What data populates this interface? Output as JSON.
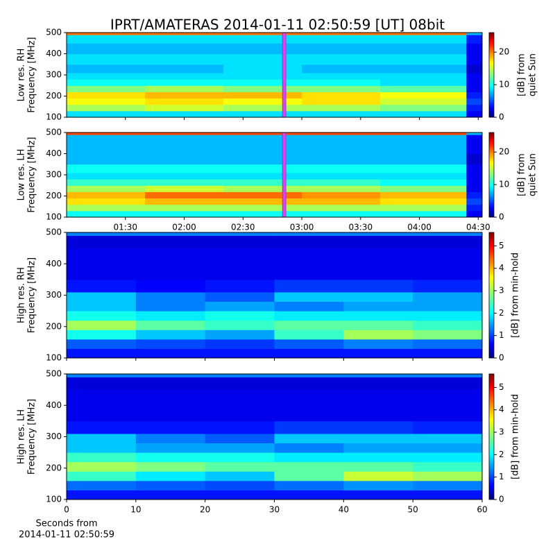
{
  "chart_data": [
    {
      "type": "heatmap",
      "title": "IPRT/AMATERAS 2014-01-11 02:50:59 [UT]   08bit",
      "ylabel": [
        "Low res. RH",
        "Frequency [MHz]"
      ],
      "colorbar_label": [
        "[dB] from",
        "quiet Sun"
      ],
      "xlim": [
        60,
        272
      ],
      "xticks": [
        90,
        120,
        150,
        180,
        210,
        240,
        270
      ],
      "ylim": [
        100,
        500
      ],
      "yticks": [
        100,
        200,
        300,
        400,
        500
      ],
      "clim": [
        0,
        26
      ],
      "cticks": [
        0,
        10,
        20
      ],
      "colormap": "jet",
      "marker_x": 171,
      "marker_color": "#e040f0",
      "xbins": [
        60,
        100,
        140,
        180,
        220,
        264,
        272
      ],
      "ybins": [
        100,
        130,
        160,
        190,
        220,
        250,
        280,
        310,
        350,
        400,
        450,
        490,
        500
      ],
      "z": [
        [
          9,
          9,
          9,
          9,
          9,
          3
        ],
        [
          14,
          15,
          14,
          14,
          13,
          4
        ],
        [
          16,
          17,
          16,
          17,
          15,
          5
        ],
        [
          17,
          18,
          18,
          17,
          16,
          4
        ],
        [
          13,
          14,
          13,
          13,
          12,
          3
        ],
        [
          10,
          10,
          10,
          10,
          9,
          3
        ],
        [
          9,
          9,
          9,
          9,
          9,
          3
        ],
        [
          8,
          8,
          9,
          8,
          8,
          2
        ],
        [
          9,
          9,
          9,
          9,
          9,
          3
        ],
        [
          8,
          8,
          8,
          8,
          8,
          3
        ],
        [
          9,
          9,
          9,
          9,
          9,
          4
        ],
        [
          20,
          20,
          20,
          20,
          20,
          8
        ]
      ]
    },
    {
      "type": "heatmap",
      "ylabel": [
        "Low res. LH",
        "Frequency [MHz]"
      ],
      "colorbar_label": [
        "[dB] from",
        "quiet Sun"
      ],
      "xlim": [
        60,
        272
      ],
      "xticks": [
        {
          "value": 90,
          "label": "01:30"
        },
        {
          "value": 120,
          "label": "02:00"
        },
        {
          "value": 150,
          "label": "02:30"
        },
        {
          "value": 180,
          "label": "03:00"
        },
        {
          "value": 210,
          "label": "03:30"
        },
        {
          "value": 240,
          "label": "04:00"
        },
        {
          "value": 270,
          "label": "04:30"
        }
      ],
      "ylim": [
        100,
        500
      ],
      "yticks": [
        100,
        200,
        300,
        400,
        500
      ],
      "clim": [
        0,
        26
      ],
      "cticks": [
        0,
        10,
        20
      ],
      "colormap": "jet",
      "marker_x": 171,
      "marker_color": "#e040f0",
      "xbins": [
        60,
        100,
        140,
        180,
        220,
        264,
        272
      ],
      "ybins": [
        100,
        130,
        160,
        190,
        220,
        250,
        280,
        310,
        350,
        400,
        450,
        490,
        500
      ],
      "z": [
        [
          10,
          10,
          10,
          10,
          10,
          3
        ],
        [
          14,
          14,
          14,
          14,
          14,
          4
        ],
        [
          17,
          18,
          18,
          18,
          17,
          5
        ],
        [
          18,
          20,
          20,
          19,
          18,
          4
        ],
        [
          14,
          15,
          14,
          14,
          13,
          3
        ],
        [
          11,
          11,
          11,
          11,
          10,
          3
        ],
        [
          9,
          9,
          9,
          9,
          9,
          3
        ],
        [
          10,
          10,
          10,
          10,
          10,
          3
        ],
        [
          8,
          8,
          8,
          8,
          8,
          2
        ],
        [
          8,
          8,
          8,
          8,
          8,
          3
        ],
        [
          8,
          8,
          8,
          8,
          8,
          3
        ],
        [
          21,
          21,
          21,
          21,
          21,
          8
        ]
      ]
    },
    {
      "type": "heatmap",
      "ylabel": [
        "High res. RH",
        "Frequency [MHz]"
      ],
      "colorbar_label": [
        "[dB] from min-hold"
      ],
      "xlim": [
        0,
        60
      ],
      "xticks": [
        0,
        10,
        20,
        30,
        40,
        50,
        60
      ],
      "xticklabels": false,
      "ylim": [
        100,
        500
      ],
      "yticks": [
        100,
        200,
        300,
        400,
        500
      ],
      "clim": [
        0,
        5.6
      ],
      "cticks": [
        0,
        1,
        2,
        3,
        4,
        5
      ],
      "colormap": "jet",
      "xbins": [
        0,
        10,
        20,
        30,
        40,
        50,
        60
      ],
      "ybins": [
        100,
        130,
        160,
        190,
        220,
        250,
        280,
        310,
        350,
        400,
        450,
        490,
        500
      ],
      "z": [
        [
          0.8,
          0.8,
          0.8,
          0.8,
          0.8,
          0.8
        ],
        [
          1.2,
          1.1,
          1.0,
          1.2,
          1.4,
          1.3
        ],
        [
          2.2,
          1.8,
          1.6,
          2.4,
          3.0,
          2.8
        ],
        [
          3.0,
          2.6,
          2.4,
          2.6,
          2.6,
          2.4
        ],
        [
          2.2,
          2.0,
          2.2,
          2.0,
          2.0,
          2.0
        ],
        [
          1.8,
          1.4,
          1.6,
          1.4,
          1.6,
          1.6
        ],
        [
          1.8,
          1.4,
          1.2,
          1.8,
          1.8,
          1.6
        ],
        [
          0.8,
          0.7,
          0.8,
          1.0,
          1.0,
          0.9
        ],
        [
          0.6,
          0.6,
          0.6,
          0.6,
          0.6,
          0.6
        ],
        [
          0.6,
          0.6,
          0.6,
          0.6,
          0.6,
          0.6
        ],
        [
          0.5,
          0.5,
          0.5,
          0.5,
          0.5,
          0.5
        ],
        [
          1.4,
          1.4,
          1.4,
          1.4,
          1.4,
          1.4
        ]
      ]
    },
    {
      "type": "heatmap",
      "ylabel": [
        "High res. LH",
        "Frequency [MHz]"
      ],
      "colorbar_label": [
        "[dB] from min-hold"
      ],
      "xlabel": [
        "Seconds from",
        "2014-01-11 02:50:59"
      ],
      "xlim": [
        0,
        60
      ],
      "xticks": [
        0,
        10,
        20,
        30,
        40,
        50,
        60
      ],
      "ylim": [
        100,
        500
      ],
      "yticks": [
        100,
        200,
        300,
        400,
        500
      ],
      "clim": [
        0,
        5.6
      ],
      "cticks": [
        0,
        1,
        2,
        3,
        4,
        5
      ],
      "colormap": "jet",
      "xbins": [
        0,
        10,
        20,
        30,
        40,
        50,
        60
      ],
      "ybins": [
        100,
        130,
        160,
        190,
        220,
        250,
        280,
        310,
        350,
        400,
        450,
        490,
        500
      ],
      "z": [
        [
          0.8,
          0.8,
          0.8,
          0.8,
          0.8,
          0.8
        ],
        [
          1.3,
          1.2,
          1.1,
          1.3,
          1.5,
          1.4
        ],
        [
          2.4,
          2.0,
          1.8,
          2.6,
          3.2,
          3.0
        ],
        [
          3.0,
          2.8,
          2.6,
          2.6,
          2.6,
          2.4
        ],
        [
          2.4,
          2.2,
          2.2,
          2.0,
          2.0,
          2.0
        ],
        [
          1.8,
          1.6,
          1.6,
          1.4,
          1.6,
          1.6
        ],
        [
          1.8,
          1.4,
          1.2,
          1.8,
          1.8,
          1.8
        ],
        [
          0.8,
          0.8,
          0.8,
          1.0,
          1.0,
          0.9
        ],
        [
          0.6,
          0.6,
          0.6,
          0.6,
          0.6,
          0.6
        ],
        [
          0.6,
          0.6,
          0.6,
          0.6,
          0.6,
          0.6
        ],
        [
          0.5,
          0.5,
          0.5,
          0.5,
          0.5,
          0.5
        ],
        [
          1.4,
          1.4,
          1.4,
          1.4,
          1.4,
          1.4
        ]
      ]
    }
  ]
}
